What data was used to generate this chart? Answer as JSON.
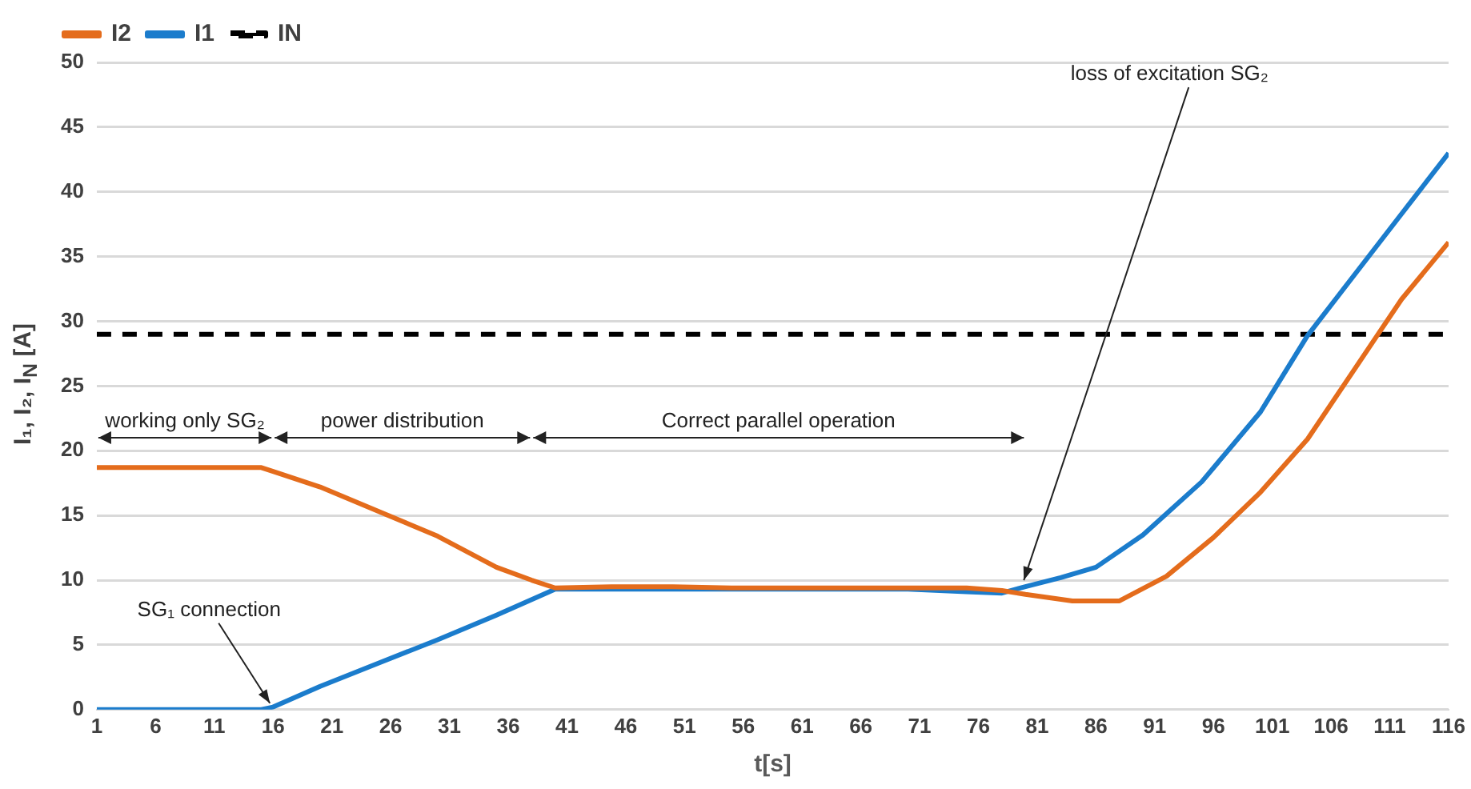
{
  "chart_data": {
    "type": "line",
    "xlabel": "t[s]",
    "ylabel": "I₁, I₂, I$_{N}$ [A]",
    "series": [
      {
        "name": "I2",
        "color": "#e46c1c",
        "line_style": "solid",
        "x": [
          1,
          15,
          16,
          20,
          25,
          30,
          35,
          38,
          40,
          45,
          50,
          55,
          60,
          65,
          70,
          75,
          78,
          80,
          84,
          88,
          92,
          96,
          100,
          104,
          108,
          110,
          112,
          116
        ],
        "values": [
          18.7,
          18.7,
          18.4,
          17.2,
          15.3,
          13.4,
          11.0,
          10.0,
          9.4,
          9.5,
          9.5,
          9.4,
          9.4,
          9.4,
          9.4,
          9.4,
          9.2,
          8.9,
          8.4,
          8.4,
          10.3,
          13.3,
          16.8,
          20.9,
          26.3,
          29.0,
          31.7,
          36.1
        ]
      },
      {
        "name": "I1",
        "color": "#1b7ccc",
        "line_style": "solid",
        "x": [
          1,
          15,
          16,
          20,
          25,
          30,
          35,
          38,
          40,
          45,
          50,
          55,
          60,
          65,
          70,
          75,
          78,
          80,
          83,
          86,
          90,
          95,
          100,
          104,
          108,
          112,
          116
        ],
        "values": [
          0,
          0,
          0.2,
          1.8,
          3.6,
          5.4,
          7.3,
          8.5,
          9.3,
          9.3,
          9.3,
          9.3,
          9.3,
          9.3,
          9.3,
          9.1,
          9.0,
          9.5,
          10.2,
          11.0,
          13.5,
          17.6,
          23.0,
          28.9,
          33.6,
          38.3,
          43.0
        ]
      },
      {
        "name": "IN",
        "color": "#000000",
        "line_style": "dashed",
        "x": [
          1,
          116
        ],
        "values": [
          29,
          29
        ]
      }
    ],
    "xlim": [
      1,
      116
    ],
    "xticks": [
      1,
      6,
      11,
      16,
      21,
      26,
      31,
      36,
      41,
      46,
      51,
      56,
      61,
      66,
      71,
      76,
      81,
      86,
      91,
      96,
      101,
      106,
      111,
      116
    ],
    "ylim": [
      0,
      50
    ],
    "yticks": [
      0,
      5,
      10,
      15,
      20,
      25,
      30,
      35,
      40,
      45,
      50
    ],
    "grid": "y",
    "legend": "top left",
    "marker": "none",
    "annotations": [
      "working only SG₂",
      "power distribution",
      "Correct parallel operation",
      {
        "text": "SG₁ connection",
        "x": 16,
        "y": 0
      },
      {
        "text": "loss of excitation SG₂",
        "x": 80,
        "y": 9.5
      }
    ]
  }
}
